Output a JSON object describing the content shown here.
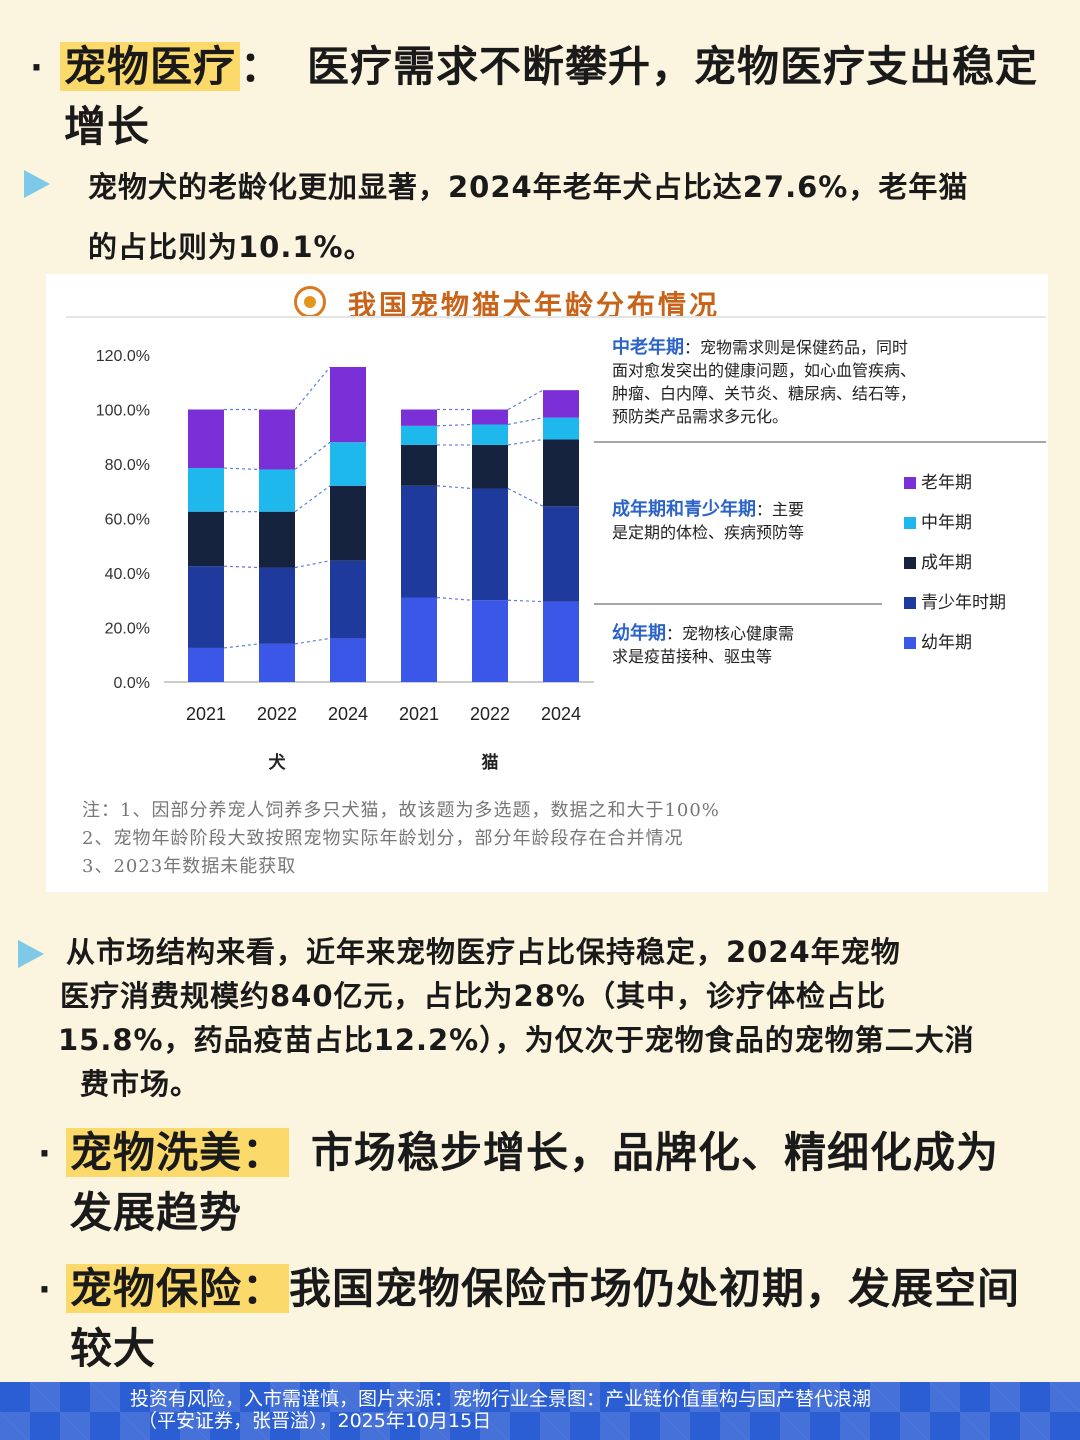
{
  "section1": {
    "bullet": "·",
    "keyword": "宠物医疗",
    "colon": "：",
    "title_line1": "医疗需求不断攀升，宠物医疗支出稳定",
    "title_line2": "增长"
  },
  "para1": {
    "line1": "宠物犬的老龄化更加显著，2024年老年犬占比达27.6%，老年猫",
    "line2": "的占比则为10.1%。"
  },
  "chart_card": {
    "title": "我国宠物猫犬年龄分布情况",
    "notes": [
      "注：1、因部分养宠人饲养多只犬猫，故该题为多选题，数据之和大于100%",
      "2、宠物年龄阶段大致按照宠物实际年龄划分，部分年龄段存在合并情况",
      "3、2023年数据未能获取"
    ],
    "annotations": {
      "senior_head": "中老年期",
      "senior_body_1": "：宠物需求则是保健药品，同时",
      "senior_body_2": "面对愈发突出的健康问题，如心血管疾病、",
      "senior_body_3": "肿瘤、白内障、关节炎、糖尿病、结石等，",
      "senior_body_4": "预防类产品需求多元化。",
      "adult_head": "成年期和青少年期",
      "adult_body_1": "：主要",
      "adult_body_2": "是定期的体检、疾病预防等",
      "young_head": "幼年期",
      "young_body_1": "：宠物核心健康需",
      "young_body_2": "求是疫苗接种、驱虫等"
    }
  },
  "chart_data": {
    "type": "bar",
    "stacked": true,
    "categories": [
      "2021",
      "2022",
      "2024",
      "2021",
      "2022",
      "2024"
    ],
    "groups": [
      {
        "label": "犬",
        "categories": [
          "2021",
          "2022",
          "2024"
        ]
      },
      {
        "label": "猫",
        "categories": [
          "2021",
          "2022",
          "2024"
        ]
      }
    ],
    "ylim": [
      0,
      120
    ],
    "yticks": [
      "0.0%",
      "20.0%",
      "40.0%",
      "60.0%",
      "80.0%",
      "100.0%",
      "120.0%"
    ],
    "series": [
      {
        "name": "幼年期",
        "color": "#3a57e8",
        "values": [
          12.5,
          14.0,
          16.0,
          31.0,
          30.0,
          29.5
        ]
      },
      {
        "name": "青少年时期",
        "color": "#1d3a9c",
        "values": [
          30.0,
          28.0,
          28.5,
          41.0,
          41.0,
          35.0
        ]
      },
      {
        "name": "成年期",
        "color": "#16233f",
        "values": [
          20.0,
          20.5,
          27.5,
          15.0,
          16.0,
          24.5
        ]
      },
      {
        "name": "中年期",
        "color": "#1fb8ec",
        "values": [
          16.0,
          15.5,
          16.0,
          7.0,
          7.5,
          8.0
        ]
      },
      {
        "name": "老年期",
        "color": "#7b2fd6",
        "values": [
          21.5,
          22.0,
          27.6,
          6.0,
          5.5,
          10.1
        ]
      }
    ],
    "legend_position": "right"
  },
  "para2": {
    "line1": "从市场结构来看，近年来宠物医疗占比保持稳定，2024年宠物",
    "line2": "医疗消费规模约840亿元，占比为28%（其中，诊疗体检占比",
    "line3": "15.8%，药品疫苗占比12.2%），为仅次于宠物食品的宠物第二大消",
    "line4": "费市场。"
  },
  "section2": {
    "bullet": "·",
    "keyword": "宠物洗美：",
    "title_line1": "市场稳步增长，品牌化、精细化成为",
    "title_line2": "发展趋势"
  },
  "section3": {
    "bullet": "·",
    "keyword": "宠物保险：",
    "title_line1": "我国宠物保险市场仍处初期，发展空间",
    "title_line2": "较大"
  },
  "footer": {
    "line1": "投资有风险，入市需谨慎，图片来源：宠物行业全景图：产业链价值重构与国产替代浪潮",
    "line2": "（平安证券，张晋溢），2025年10月15日"
  }
}
